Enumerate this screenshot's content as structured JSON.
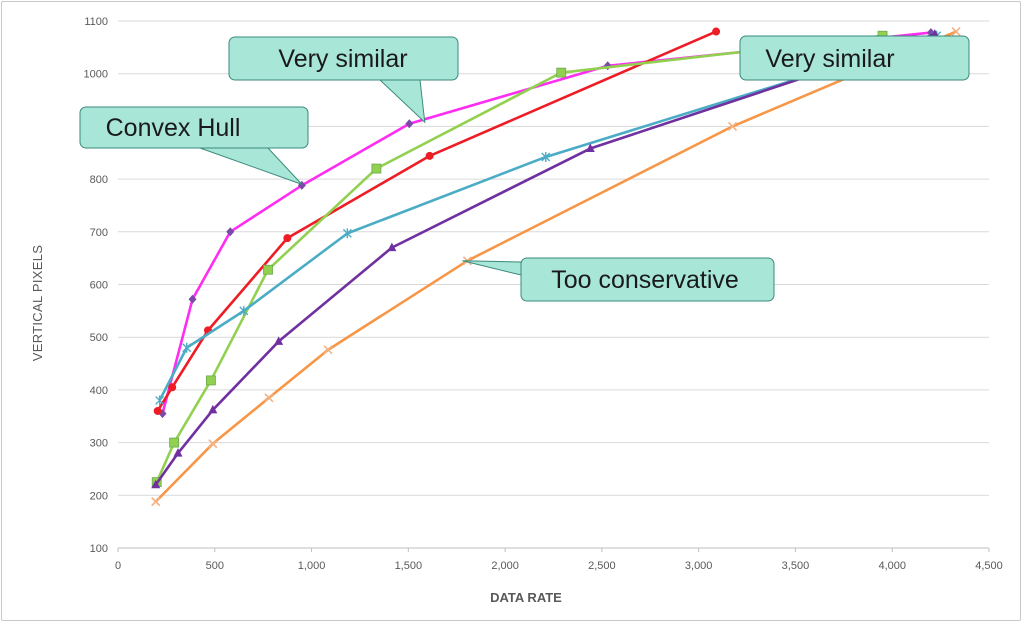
{
  "chart_data": {
    "type": "line",
    "title": "",
    "xlabel": "DATA RATE",
    "ylabel": "VERTICAL PIXELS",
    "xlim": [
      0,
      4500
    ],
    "ylim": [
      100,
      1100
    ],
    "x_ticks": [
      "0",
      "500",
      "1,000",
      "1,500",
      "2,000",
      "2,500",
      "3,000",
      "3,500",
      "4,000",
      "4,500"
    ],
    "y_ticks": [
      "100",
      "200",
      "300",
      "400",
      "500",
      "600",
      "700",
      "800",
      "900",
      "1000",
      "1100"
    ],
    "grid": "horizontal",
    "legend": "none",
    "series": [
      {
        "color": "#ff2df2",
        "marker": "diamond",
        "markerColor": "#7b4aa8",
        "points": [
          [
            230,
            355
          ],
          [
            385,
            572
          ],
          [
            580,
            700
          ],
          [
            950,
            788
          ],
          [
            1505,
            905
          ],
          [
            2530,
            1015
          ],
          [
            4200,
            1078
          ]
        ]
      },
      {
        "color": "#ee1c25",
        "marker": "circle",
        "markerColor": "#ee1c25",
        "points": [
          [
            205,
            360
          ],
          [
            280,
            405
          ],
          [
            465,
            513
          ],
          [
            875,
            688
          ],
          [
            1610,
            844
          ],
          [
            3090,
            1080
          ]
        ]
      },
      {
        "color": "#92d050",
        "marker": "square",
        "markerColor": "#92d050",
        "points": [
          [
            200,
            225
          ],
          [
            290,
            300
          ],
          [
            480,
            418
          ],
          [
            775,
            628
          ],
          [
            1335,
            820
          ],
          [
            2290,
            1002
          ],
          [
            3950,
            1072
          ]
        ]
      },
      {
        "color": "#4bacc6",
        "marker": "star",
        "markerColor": "#4bacc6",
        "points": [
          [
            215,
            380
          ],
          [
            355,
            480
          ],
          [
            650,
            550
          ],
          [
            1185,
            697
          ],
          [
            2210,
            842
          ],
          [
            4230,
            1072
          ]
        ]
      },
      {
        "color": "#7030a0",
        "marker": "triangle",
        "markerColor": "#7030a0",
        "points": [
          [
            195,
            220
          ],
          [
            310,
            280
          ],
          [
            490,
            362
          ],
          [
            830,
            492
          ],
          [
            1415,
            670
          ],
          [
            2440,
            858
          ],
          [
            4220,
            1075
          ]
        ]
      },
      {
        "color": "#f79646",
        "marker": "x",
        "markerColor": "#f4b183",
        "points": [
          [
            195,
            188
          ],
          [
            490,
            298
          ],
          [
            780,
            385
          ],
          [
            1085,
            476
          ],
          [
            1805,
            645
          ],
          [
            3175,
            900
          ],
          [
            4330,
            1080
          ]
        ]
      }
    ]
  },
  "callouts": [
    {
      "text": "Very similar",
      "tail": [
        1585,
        908
      ]
    },
    {
      "text": "Convex Hull",
      "tail": [
        950,
        790
      ]
    },
    {
      "text": "Very similar",
      "tail": [
        3510,
        1042
      ]
    },
    {
      "text": "Too conservative",
      "tail": [
        1780,
        645
      ]
    }
  ],
  "colors": {
    "callout_fill": "#a8e6d8",
    "callout_stroke": "#3a8a7c",
    "grid": "#d9d9d9",
    "axis": "#bfbfbf"
  }
}
